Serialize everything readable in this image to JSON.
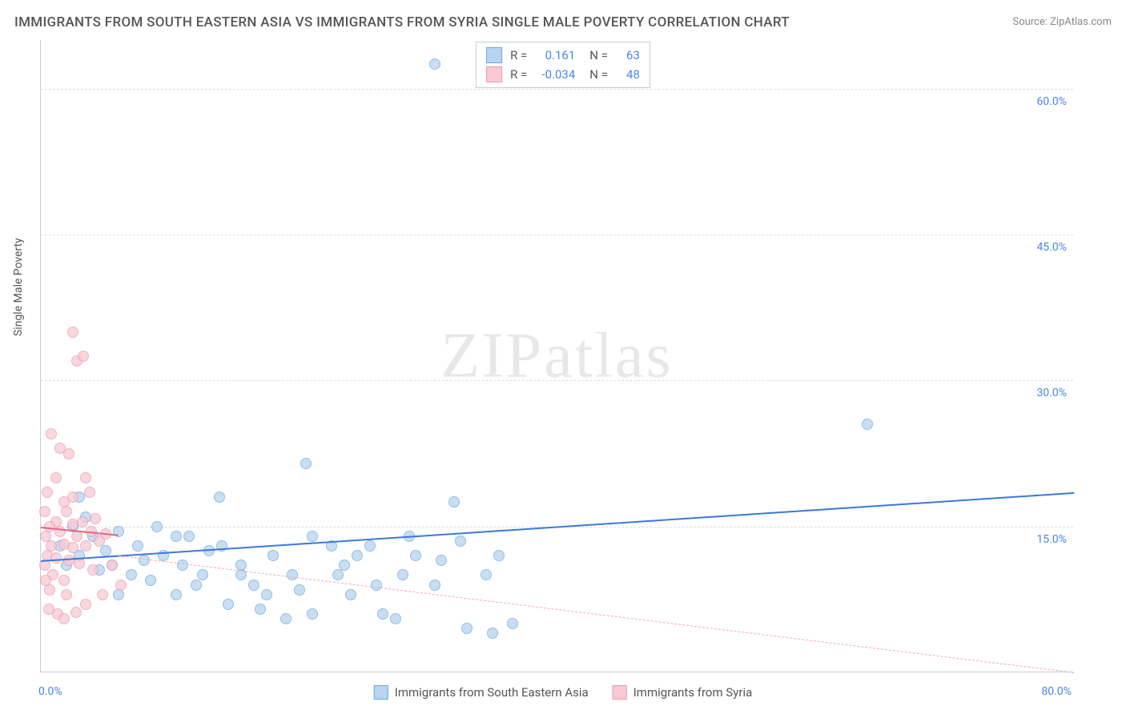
{
  "title": "IMMIGRANTS FROM SOUTH EASTERN ASIA VS IMMIGRANTS FROM SYRIA SINGLE MALE POVERTY CORRELATION CHART",
  "source": "Source: ZipAtlas.com",
  "watermark_zip": "ZIP",
  "watermark_atlas": "atlas",
  "ylabel": "Single Male Poverty",
  "chart": {
    "type": "scatter",
    "xlim": [
      0,
      80
    ],
    "ylim": [
      0,
      65
    ],
    "x_ticks": [
      "0.0%",
      "80.0%"
    ],
    "y_ticks": [
      {
        "value": 15,
        "label": "15.0%"
      },
      {
        "value": 30,
        "label": "30.0%"
      },
      {
        "value": 45,
        "label": "45.0%"
      },
      {
        "value": 60,
        "label": "60.0%"
      }
    ],
    "background_color": "#ffffff",
    "grid_color": "#dddddd",
    "series": [
      {
        "name": "Immigrants from South Eastern Asia",
        "fill_color": "#b8d4f0",
        "stroke_color": "#6fa8dc",
        "r_value": "0.161",
        "n_value": "63",
        "trend": {
          "x1": 0,
          "y1": 11.5,
          "x2": 80,
          "y2": 18.5,
          "color": "#3c78d8",
          "dashed": false,
          "width": 2
        },
        "trend_ext": {
          "x1": 6,
          "y1": 12,
          "x2": 80,
          "y2": 0,
          "color": "#f4a6b8",
          "dashed": true,
          "width": 1
        },
        "points": [
          {
            "x": 30.5,
            "y": 62.5
          },
          {
            "x": 64,
            "y": 25.5
          },
          {
            "x": 32,
            "y": 17.5
          },
          {
            "x": 13.8,
            "y": 18
          },
          {
            "x": 20.5,
            "y": 21.5
          },
          {
            "x": 15.5,
            "y": 10
          },
          {
            "x": 22.5,
            "y": 13
          },
          {
            "x": 10.5,
            "y": 14
          },
          {
            "x": 5.5,
            "y": 11
          },
          {
            "x": 7.5,
            "y": 13
          },
          {
            "x": 3,
            "y": 12
          },
          {
            "x": 4.5,
            "y": 10.5
          },
          {
            "x": 8,
            "y": 11.5
          },
          {
            "x": 6,
            "y": 8
          },
          {
            "x": 11,
            "y": 11
          },
          {
            "x": 13,
            "y": 12.5
          },
          {
            "x": 9,
            "y": 15
          },
          {
            "x": 16.5,
            "y": 9
          },
          {
            "x": 18,
            "y": 12
          },
          {
            "x": 19.5,
            "y": 10
          },
          {
            "x": 21,
            "y": 14
          },
          {
            "x": 23.5,
            "y": 11
          },
          {
            "x": 25.5,
            "y": 13
          },
          {
            "x": 14.5,
            "y": 7
          },
          {
            "x": 17.5,
            "y": 8
          },
          {
            "x": 12,
            "y": 9
          },
          {
            "x": 26.5,
            "y": 6
          },
          {
            "x": 28,
            "y": 10
          },
          {
            "x": 24,
            "y": 8
          },
          {
            "x": 30.5,
            "y": 9
          },
          {
            "x": 32.5,
            "y": 13.5
          },
          {
            "x": 29,
            "y": 12
          },
          {
            "x": 34.5,
            "y": 10
          },
          {
            "x": 33,
            "y": 4.5
          },
          {
            "x": 36.5,
            "y": 5
          },
          {
            "x": 27.5,
            "y": 5.5
          },
          {
            "x": 21,
            "y": 6
          },
          {
            "x": 19,
            "y": 5.5
          },
          {
            "x": 17,
            "y": 6.5
          },
          {
            "x": 15.5,
            "y": 11
          },
          {
            "x": 23,
            "y": 10
          },
          {
            "x": 10.5,
            "y": 8
          },
          {
            "x": 8.5,
            "y": 9.5
          },
          {
            "x": 6,
            "y": 14.5
          },
          {
            "x": 4,
            "y": 14
          },
          {
            "x": 3.5,
            "y": 16
          },
          {
            "x": 2.5,
            "y": 15
          },
          {
            "x": 1.5,
            "y": 13
          },
          {
            "x": 9.5,
            "y": 12
          },
          {
            "x": 11.5,
            "y": 14
          },
          {
            "x": 12.5,
            "y": 10
          },
          {
            "x": 7,
            "y": 10
          },
          {
            "x": 31,
            "y": 11.5
          },
          {
            "x": 28.5,
            "y": 14
          },
          {
            "x": 26,
            "y": 9
          },
          {
            "x": 24.5,
            "y": 12
          },
          {
            "x": 20,
            "y": 8.5
          },
          {
            "x": 35.5,
            "y": 12
          },
          {
            "x": 3,
            "y": 18
          },
          {
            "x": 35,
            "y": 4
          },
          {
            "x": 14,
            "y": 13
          },
          {
            "x": 5,
            "y": 12.5
          },
          {
            "x": 2,
            "y": 11
          }
        ]
      },
      {
        "name": "Immigrants from Syria",
        "fill_color": "#f9c9d4",
        "stroke_color": "#e89bb0",
        "r_value": "-0.034",
        "n_value": "48",
        "trend": {
          "x1": 0,
          "y1": 15,
          "x2": 6,
          "y2": 14.2,
          "color": "#e06687",
          "dashed": false,
          "width": 2
        },
        "points": [
          {
            "x": 2.5,
            "y": 35
          },
          {
            "x": 2.8,
            "y": 32
          },
          {
            "x": 3.3,
            "y": 32.5
          },
          {
            "x": 0.8,
            "y": 24.5
          },
          {
            "x": 1.5,
            "y": 23
          },
          {
            "x": 2.2,
            "y": 22.5
          },
          {
            "x": 1.2,
            "y": 20
          },
          {
            "x": 3.5,
            "y": 20
          },
          {
            "x": 0.5,
            "y": 18.5
          },
          {
            "x": 2.5,
            "y": 18
          },
          {
            "x": 1.8,
            "y": 17.5
          },
          {
            "x": 3.8,
            "y": 18.5
          },
          {
            "x": 0.3,
            "y": 16.5
          },
          {
            "x": 1.2,
            "y": 15.5
          },
          {
            "x": 2.5,
            "y": 15.2
          },
          {
            "x": 0.7,
            "y": 15
          },
          {
            "x": 3.2,
            "y": 15.5
          },
          {
            "x": 4.2,
            "y": 15.8
          },
          {
            "x": 1.5,
            "y": 14.5
          },
          {
            "x": 2.8,
            "y": 14
          },
          {
            "x": 0.4,
            "y": 14
          },
          {
            "x": 3.9,
            "y": 14.5
          },
          {
            "x": 5,
            "y": 14.2
          },
          {
            "x": 0.8,
            "y": 13
          },
          {
            "x": 1.8,
            "y": 13.2
          },
          {
            "x": 2.5,
            "y": 12.8
          },
          {
            "x": 3.5,
            "y": 13
          },
          {
            "x": 4.5,
            "y": 13.5
          },
          {
            "x": 0.5,
            "y": 12
          },
          {
            "x": 1.2,
            "y": 11.8
          },
          {
            "x": 2.2,
            "y": 11.5
          },
          {
            "x": 5.5,
            "y": 11
          },
          {
            "x": 0.3,
            "y": 11
          },
          {
            "x": 3,
            "y": 11.2
          },
          {
            "x": 0.9,
            "y": 10
          },
          {
            "x": 1.8,
            "y": 9.5
          },
          {
            "x": 4,
            "y": 10.5
          },
          {
            "x": 0.7,
            "y": 8.5
          },
          {
            "x": 2,
            "y": 8
          },
          {
            "x": 4.8,
            "y": 8
          },
          {
            "x": 0.6,
            "y": 6.5
          },
          {
            "x": 1.3,
            "y": 6
          },
          {
            "x": 1.8,
            "y": 5.5
          },
          {
            "x": 2.7,
            "y": 6.2
          },
          {
            "x": 6.2,
            "y": 9
          },
          {
            "x": 3.5,
            "y": 7
          },
          {
            "x": 0.4,
            "y": 9.5
          },
          {
            "x": 2,
            "y": 16.5
          }
        ]
      }
    ]
  },
  "legend_labels": {
    "r_label": "R =",
    "n_label": "N ="
  }
}
